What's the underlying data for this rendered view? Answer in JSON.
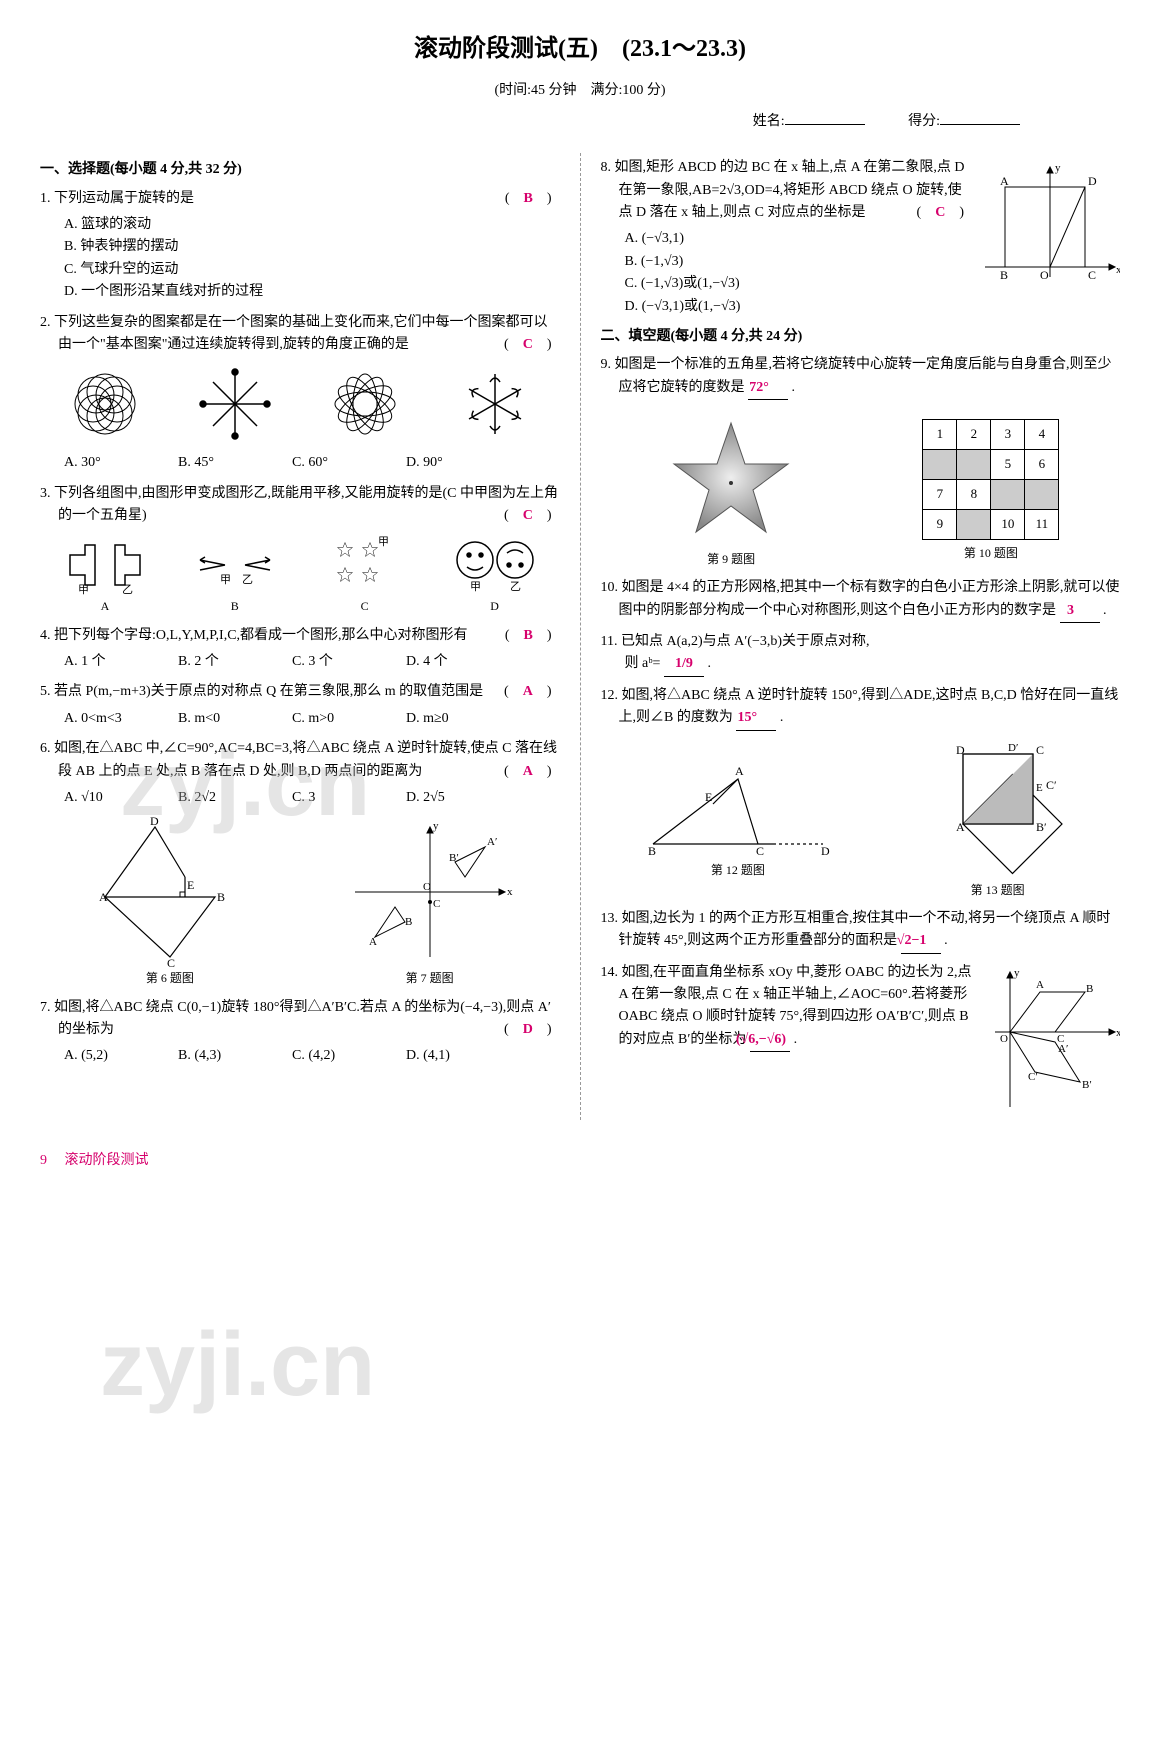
{
  "title": "滚动阶段测试(五)　(23.1～23.3)",
  "subtitle": "(时间:45 分钟　满分:100 分)",
  "nameLabel": "姓名:",
  "scoreLabel": "得分:",
  "section1": "一、选择题(每小题 4 分,共 32 分)",
  "section2": "二、填空题(每小题 4 分,共 24 分)",
  "q1": {
    "text": "1. 下列运动属于旋转的是",
    "answer": "B",
    "opts": [
      "A. 篮球的滚动",
      "B. 钟表钟摆的摆动",
      "C. 气球升空的运动",
      "D. 一个图形沿某直线对折的过程"
    ]
  },
  "q2": {
    "text": "2. 下列这些复杂的图案都是在一个图案的基础上变化而来,它们中每一个图案都可以由一个\"基本图案\"通过连续旋转得到,旋转的角度正确的是",
    "answer": "C",
    "opts": [
      "A. 30°",
      "B. 45°",
      "C. 60°",
      "D. 90°"
    ]
  },
  "q3": {
    "text": "3. 下列各组图中,由图形甲变成图形乙,既能用平移,又能用旋转的是(C 中甲图为左上角的一个五角星)",
    "answer": "C",
    "labels": [
      "A",
      "B",
      "C",
      "D"
    ]
  },
  "q4": {
    "text": "4. 把下列每个字母:O,L,Y,M,P,I,C,都看成一个图形,那么中心对称图形有",
    "answer": "B",
    "opts": [
      "A. 1 个",
      "B. 2 个",
      "C. 3 个",
      "D. 4 个"
    ]
  },
  "q5": {
    "text": "5. 若点 P(m,−m+3)关于原点的对称点 Q 在第三象限,那么 m 的取值范围是",
    "answer": "A",
    "opts": [
      "A. 0<m<3",
      "B. m<0",
      "C. m>0",
      "D. m≥0"
    ]
  },
  "q6": {
    "text": "6. 如图,在△ABC 中,∠C=90°,AC=4,BC=3,将△ABC 绕点 A 逆时针旋转,使点 C 落在线段 AB 上的点 E 处,点 B 落在点 D 处,则 B,D 两点间的距离为",
    "answer": "A",
    "opts": [
      "A. √10",
      "B. 2√2",
      "C. 3",
      "D. 2√5"
    ],
    "figLabel": "第 6 题图"
  },
  "q7": {
    "text": "7. 如图,将△ABC 绕点 C(0,−1)旋转 180°得到△A′B′C.若点 A 的坐标为(−4,−3),则点 A′的坐标为",
    "answer": "D",
    "opts": [
      "A. (5,2)",
      "B. (4,3)",
      "C. (4,2)",
      "D. (4,1)"
    ],
    "figLabel": "第 7 题图"
  },
  "q8": {
    "text": "8. 如图,矩形 ABCD 的边 BC 在 x 轴上,点 A 在第二象限,点 D 在第一象限,AB=2√3,OD=4,将矩形 ABCD 绕点 O 旋转,使点 D 落在 x 轴上,则点 C 对应点的坐标是",
    "answer": "C",
    "opts": [
      "A. (−√3,1)",
      "B. (−1,√3)",
      "C. (−1,√3)或(1,−√3)",
      "D. (−√3,1)或(1,−√3)"
    ]
  },
  "q9": {
    "text": "9. 如图是一个标准的五角星,若将它绕旋转中心旋转一定角度后能与自身重合,则至少应将它旋转的度数是",
    "answer": "72°",
    "figLabel": "第 9 题图"
  },
  "q10": {
    "text": "10. 如图是 4×4 的正方形网格,把其中一个标有数字的白色小正方形涂上阴影,就可以使图中的阴影部分构成一个中心对称图形,则这个白色小正方形内的数字是",
    "answer": "3",
    "figLabel": "第 10 题图",
    "grid": [
      [
        {
          "v": "1",
          "s": 0
        },
        {
          "v": "2",
          "s": 0
        },
        {
          "v": "3",
          "s": 0
        },
        {
          "v": "4",
          "s": 0
        }
      ],
      [
        {
          "v": "",
          "s": 1
        },
        {
          "v": "",
          "s": 1
        },
        {
          "v": "5",
          "s": 0
        },
        {
          "v": "6",
          "s": 0
        }
      ],
      [
        {
          "v": "7",
          "s": 0
        },
        {
          "v": "8",
          "s": 0
        },
        {
          "v": "",
          "s": 1
        },
        {
          "v": "",
          "s": 1
        }
      ],
      [
        {
          "v": "9",
          "s": 0
        },
        {
          "v": "",
          "s": 1
        },
        {
          "v": "10",
          "s": 0
        },
        {
          "v": "11",
          "s": 0
        }
      ]
    ]
  },
  "q11": {
    "text": "11. 已知点 A(a,2)与点 A′(−3,b)关于原点对称,",
    "text2": "则 aᵇ=",
    "answer": "1/9"
  },
  "q12": {
    "text": "12. 如图,将△ABC 绕点 A 逆时针旋转 150°,得到△ADE,这时点 B,C,D 恰好在同一直线上,则∠B 的度数为",
    "answer": "15°",
    "figLabel": "第 12 题图"
  },
  "q13": {
    "text": "13. 如图,边长为 1 的两个正方形互相重合,按住其中一个不动,将另一个绕顶点 A 顺时针旋转 45°,则这两个正方形重叠部分的面积是",
    "answer": "√2−1",
    "figLabel": "第 13 题图"
  },
  "q14": {
    "text": "14. 如图,在平面直角坐标系 xOy 中,菱形 OABC 的边长为 2,点 A 在第一象限,点 C 在 x 轴正半轴上,∠AOC=60°.若将菱形 OABC 绕点 O 顺时针旋转 75°,得到四边形 OA′B′C′,则点 B 的对应点 B′的坐标为",
    "answer": "(√6,−√6)"
  },
  "footer": {
    "page": "9",
    "label": "滚动阶段测试"
  },
  "watermarks": [
    "zyj.cn",
    "zyji.cn"
  ]
}
